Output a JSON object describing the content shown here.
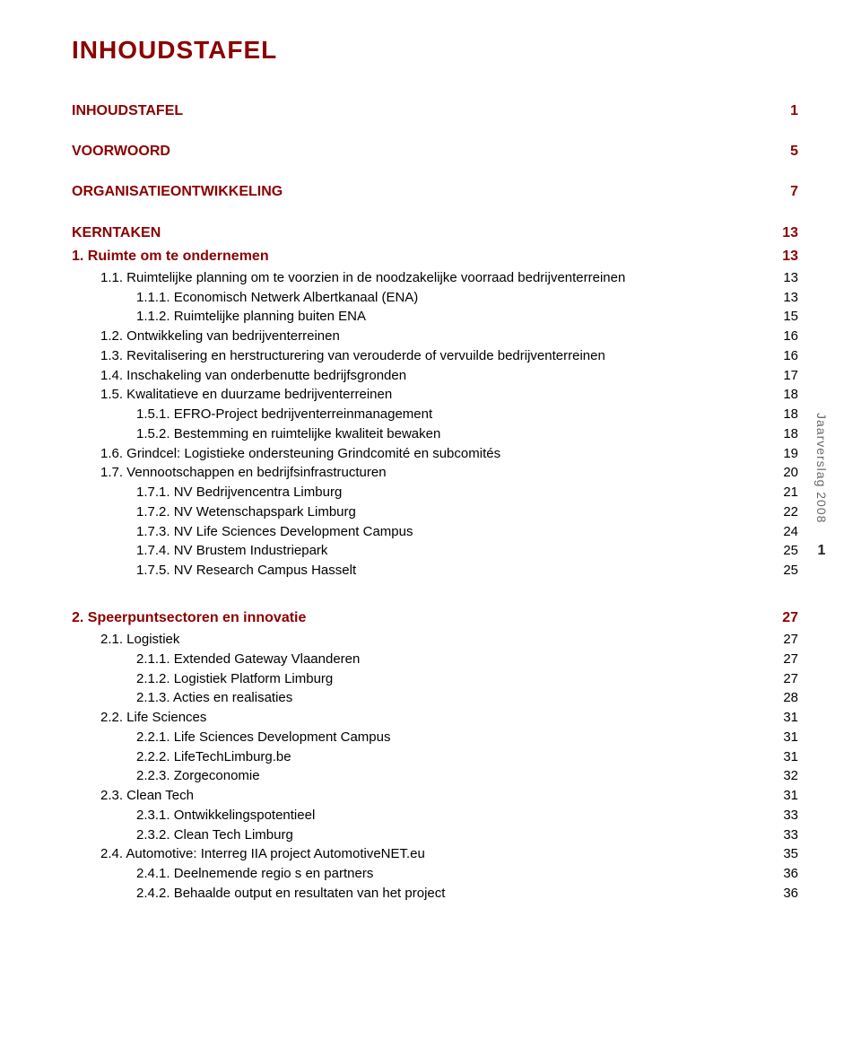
{
  "colors": {
    "accent": "#8b0000",
    "text": "#000000",
    "muted": "#6a6a6a",
    "background": "#ffffff"
  },
  "title": "INHOUDSTAFEL",
  "sidebar": {
    "vertical_label": "Jaarverslag 2008",
    "page_number": "1"
  },
  "sections": [
    {
      "kind": "header",
      "num": "",
      "label": "INHOUDSTAFEL",
      "page": "1",
      "indent": 0
    },
    {
      "kind": "header",
      "num": "",
      "label": "VOORWOORD",
      "page": "5",
      "indent": 0
    },
    {
      "kind": "header",
      "num": "",
      "label": "ORGANISATIEONTWIKKELING",
      "page": "7",
      "indent": 0
    },
    {
      "kind": "header",
      "num": "",
      "label": "KERNTAKEN",
      "page": "13",
      "indent": 0
    },
    {
      "kind": "header2",
      "num": "1.",
      "label": "Ruimte om te ondernemen",
      "page": "13",
      "indent": 0
    },
    {
      "kind": "item",
      "num": "1.1.",
      "label": "Ruimtelijke planning om te voorzien in de noodzakelijke voorraad bedrijventerreinen",
      "page": "13",
      "indent": 1
    },
    {
      "kind": "item",
      "num": "1.1.1.",
      "label": "Economisch Netwerk Albertkanaal (ENA)",
      "page": "13",
      "indent": 2
    },
    {
      "kind": "item",
      "num": "1.1.2.",
      "label": "Ruimtelijke planning buiten ENA",
      "page": "15",
      "indent": 2
    },
    {
      "kind": "item",
      "num": "1.2.",
      "label": "Ontwikkeling van bedrijventerreinen",
      "page": "16",
      "indent": 1
    },
    {
      "kind": "item",
      "num": "1.3.",
      "label": "Revitalisering en herstructurering van verouderde of vervuilde bedrijventerreinen",
      "page": "16",
      "indent": 1
    },
    {
      "kind": "item",
      "num": "1.4.",
      "label": "Inschakeling van onderbenutte bedrijfsgronden",
      "page": "17",
      "indent": 1
    },
    {
      "kind": "item",
      "num": "1.5.",
      "label": "Kwalitatieve en duurzame bedrijventerreinen",
      "page": "18",
      "indent": 1
    },
    {
      "kind": "item",
      "num": "1.5.1.",
      "label": "EFRO-Project bedrijventerreinmanagement",
      "page": "18",
      "indent": 2
    },
    {
      "kind": "item",
      "num": "1.5.2.",
      "label": "Bestemming en ruimtelijke kwaliteit bewaken",
      "page": "18",
      "indent": 2
    },
    {
      "kind": "item",
      "num": "1.6.",
      "label": "Grindcel: Logistieke ondersteuning Grindcomité en subcomités",
      "page": "19",
      "indent": 1
    },
    {
      "kind": "item",
      "num": "1.7.",
      "label": "Vennootschappen en bedrijfsinfrastructuren",
      "page": "20",
      "indent": 1
    },
    {
      "kind": "item",
      "num": "1.7.1.",
      "label": "NV Bedrijvencentra Limburg",
      "page": "21",
      "indent": 2
    },
    {
      "kind": "item",
      "num": "1.7.2.",
      "label": "NV Wetenschapspark Limburg",
      "page": "22",
      "indent": 2
    },
    {
      "kind": "item",
      "num": "1.7.3.",
      "label": "NV Life Sciences Development Campus",
      "page": "24",
      "indent": 2
    },
    {
      "kind": "item",
      "num": "1.7.4.",
      "label": "NV Brustem Industriepark",
      "page": "25",
      "indent": 2
    },
    {
      "kind": "item",
      "num": "1.7.5.",
      "label": "NV Research Campus Hasselt",
      "page": "25",
      "indent": 2
    },
    {
      "kind": "header2",
      "num": "2.",
      "label": "Speerpuntsectoren en innovatie",
      "page": "27",
      "indent": 0,
      "spacer_before": true
    },
    {
      "kind": "item",
      "num": "2.1.",
      "label": "Logistiek",
      "page": "27",
      "indent": 1
    },
    {
      "kind": "item",
      "num": "2.1.1.",
      "label": "Extended Gateway Vlaanderen",
      "page": "27",
      "indent": 2
    },
    {
      "kind": "item",
      "num": "2.1.2.",
      "label": "Logistiek Platform Limburg",
      "page": "27",
      "indent": 2
    },
    {
      "kind": "item",
      "num": "2.1.3.",
      "label": "Acties en realisaties",
      "page": "28",
      "indent": 2
    },
    {
      "kind": "item",
      "num": "2.2.",
      "label": "Life Sciences",
      "page": "31",
      "indent": 1
    },
    {
      "kind": "item",
      "num": "2.2.1.",
      "label": "Life Sciences Development Campus",
      "page": "31",
      "indent": 2
    },
    {
      "kind": "item",
      "num": "2.2.2.",
      "label": "LifeTechLimburg.be",
      "page": "31",
      "indent": 2
    },
    {
      "kind": "item",
      "num": "2.2.3.",
      "label": "Zorgeconomie",
      "page": "32",
      "indent": 2
    },
    {
      "kind": "item",
      "num": "2.3.",
      "label": "Clean Tech",
      "page": "31",
      "indent": 1
    },
    {
      "kind": "item",
      "num": "2.3.1.",
      "label": "Ontwikkelingspotentieel",
      "page": "33",
      "indent": 2
    },
    {
      "kind": "item",
      "num": "2.3.2.",
      "label": "Clean Tech Limburg",
      "page": "33",
      "indent": 2
    },
    {
      "kind": "item",
      "num": "2.4.",
      "label": "Automotive: Interreg IIA project AutomotiveNET.eu",
      "page": "35",
      "indent": 1
    },
    {
      "kind": "item",
      "num": "2.4.1.",
      "label": "Deelnemende regio s en partners",
      "page": "36",
      "indent": 2
    },
    {
      "kind": "item",
      "num": "2.4.2.",
      "label": "Behaalde output en resultaten van het project",
      "page": "36",
      "indent": 2
    }
  ]
}
